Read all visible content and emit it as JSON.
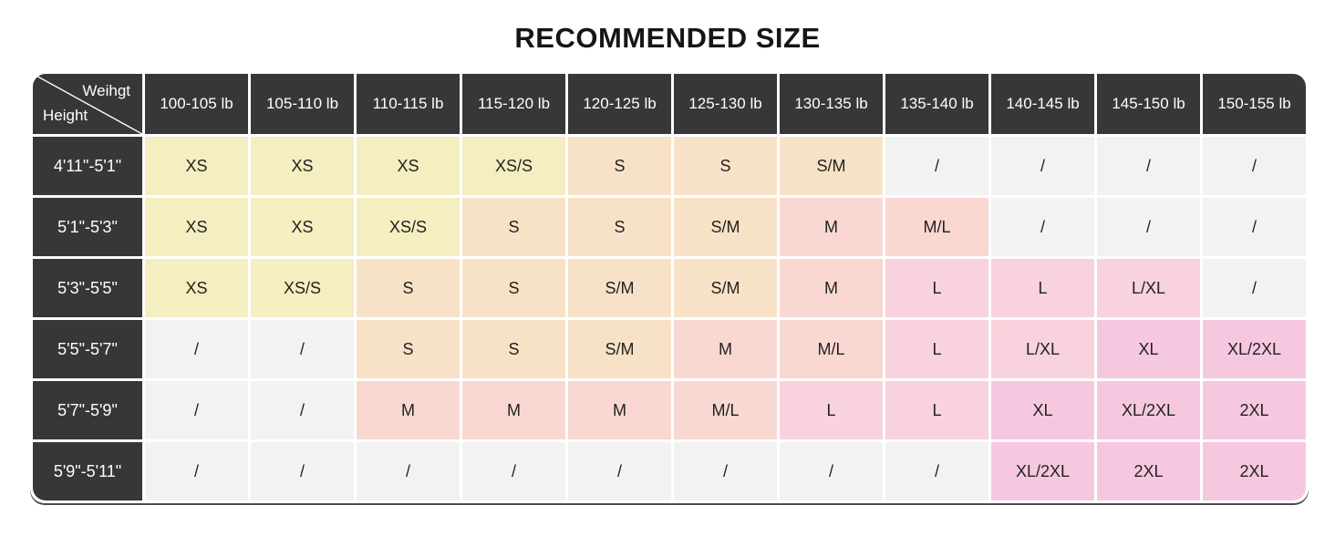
{
  "title": "RECOMMENDED SIZE",
  "chart_data": {
    "type": "table",
    "title": "RECOMMENDED SIZE",
    "corner": {
      "top_label": "Weihgt",
      "bottom_label": "Height"
    },
    "columns": [
      "100-105 lb",
      "105-110 lb",
      "110-115 lb",
      "115-120 lb",
      "120-125 lb",
      "125-130 lb",
      "130-135 lb",
      "135-140 lb",
      "140-145 lb",
      "145-150 lb",
      "150-155 lb"
    ],
    "rows": [
      {
        "height": "4'11\"-5'1\"",
        "sizes": [
          "XS",
          "XS",
          "XS",
          "XS/S",
          "S",
          "S",
          "S/M",
          "/",
          "/",
          "/",
          "/"
        ]
      },
      {
        "height": "5'1\"-5'3\"",
        "sizes": [
          "XS",
          "XS",
          "XS/S",
          "S",
          "S",
          "S/M",
          "M",
          "M/L",
          "/",
          "/",
          "/"
        ]
      },
      {
        "height": "5'3\"-5'5\"",
        "sizes": [
          "XS",
          "XS/S",
          "S",
          "S",
          "S/M",
          "S/M",
          "M",
          "L",
          "L",
          "L/XL",
          "/"
        ]
      },
      {
        "height": "5'5\"-5'7\"",
        "sizes": [
          "/",
          "/",
          "S",
          "S",
          "S/M",
          "M",
          "M/L",
          "L",
          "L/XL",
          "XL",
          "XL/2XL"
        ]
      },
      {
        "height": "5'7\"-5'9\"",
        "sizes": [
          "/",
          "/",
          "M",
          "M",
          "M",
          "M/L",
          "L",
          "L",
          "XL",
          "XL/2XL",
          "2XL"
        ]
      },
      {
        "height": "5'9\"-5'11\"",
        "sizes": [
          "/",
          "/",
          "/",
          "/",
          "/",
          "/",
          "/",
          "/",
          "XL/2XL",
          "2XL",
          "2XL"
        ]
      }
    ]
  },
  "colors": {
    "header_bg": "#373639",
    "header_fg": "#ffffff",
    "cell_fg": "#222222",
    "size_xs": "#f4eec0",
    "size_s": "#f8e2c7",
    "size_m": "#f9d8d2",
    "size_l": "#f8d2dc",
    "size_xl": "#f6c8e0",
    "not_available": "#f3f2f3"
  }
}
